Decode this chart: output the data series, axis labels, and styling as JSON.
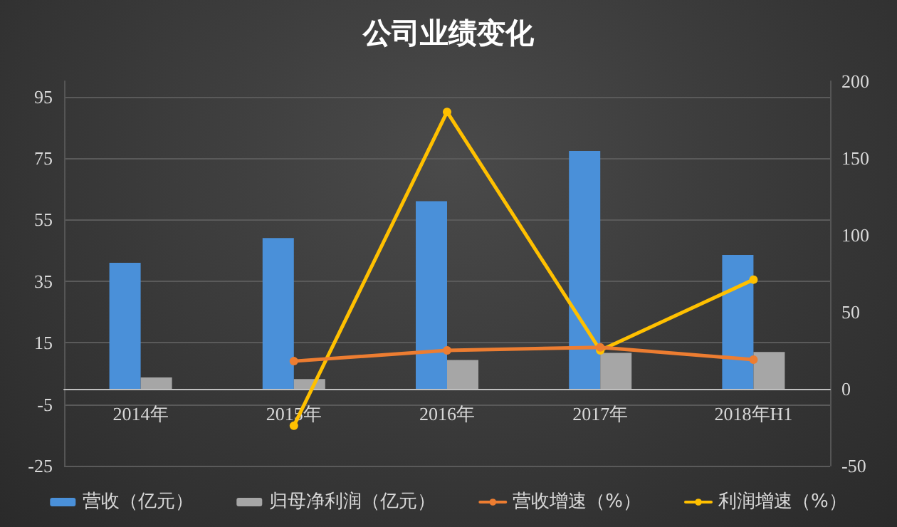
{
  "chart_data": {
    "type": "bar",
    "title": "公司业绩变化",
    "categories": [
      "2014年",
      "2015年",
      "2016年",
      "2017年",
      "2018年H1"
    ],
    "series": [
      {
        "name": "营收（亿元）",
        "color": "#4a90d9",
        "values": [
          41,
          49,
          61,
          77.3,
          43.5
        ]
      },
      {
        "name": "归母净利润（亿元）",
        "color": "#a6a6a6",
        "values": [
          3.7,
          3.2,
          9.4,
          11.7,
          12
        ]
      },
      {
        "name": "营收增速（%）",
        "type": "line",
        "axis": "y2",
        "color": "#ed7d31",
        "values": [
          null,
          18,
          25,
          27,
          19
        ]
      },
      {
        "name": "利润增速（%）",
        "type": "line",
        "axis": "y2",
        "color": "#ffc000",
        "values": [
          null,
          -24,
          180,
          25,
          71
        ]
      }
    ],
    "ylim": [
      -25,
      100
    ],
    "yticks": [
      -25,
      -5,
      15,
      35,
      55,
      75,
      95
    ],
    "y2lim": [
      -50,
      200
    ],
    "y2ticks": [
      -50,
      0,
      50,
      100,
      150,
      200
    ],
    "grid": "y",
    "legend": "bottom",
    "marker": "circle",
    "line_style": "solid"
  }
}
